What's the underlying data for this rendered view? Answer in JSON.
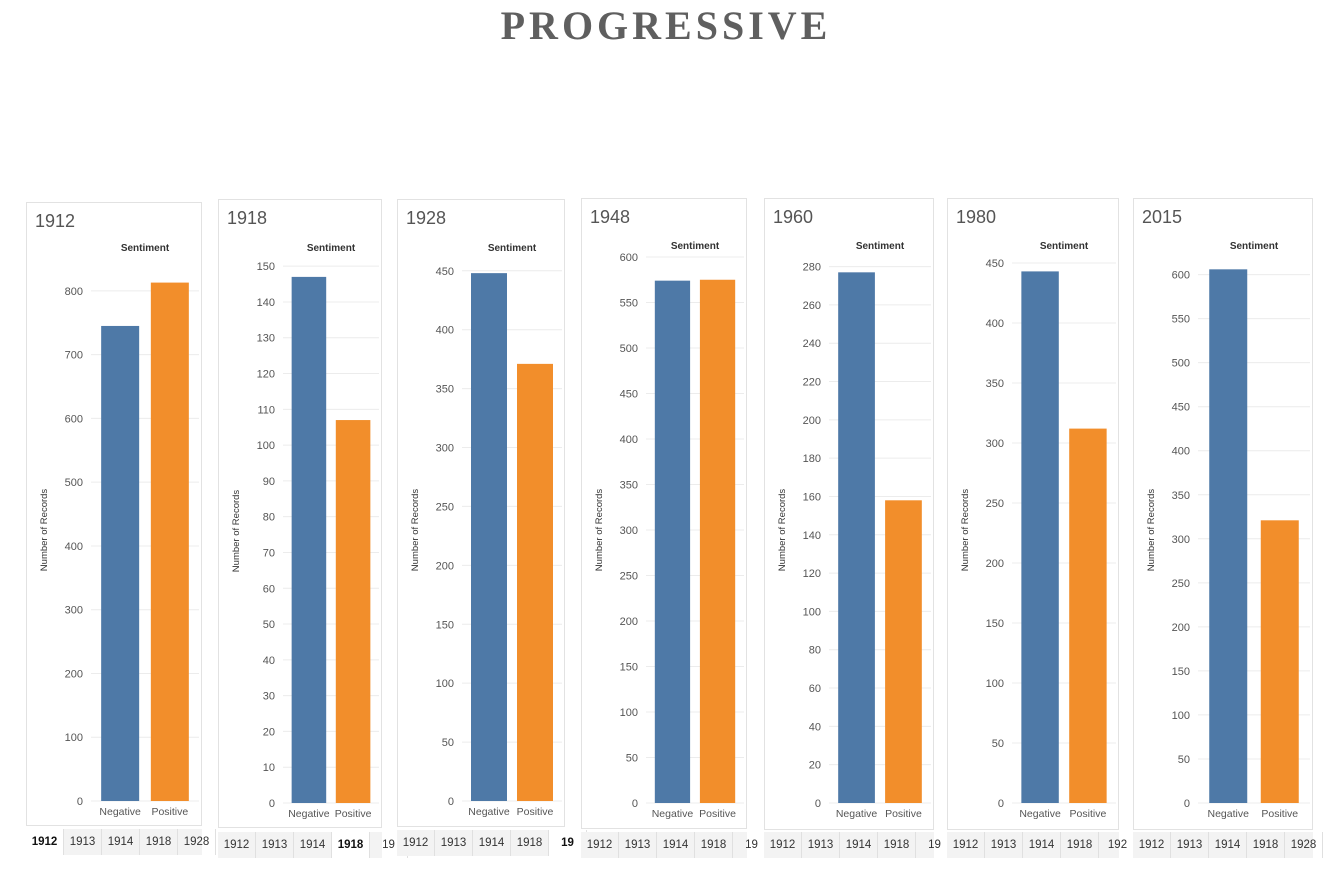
{
  "page_title": "PROGRESSIVE",
  "colors": {
    "negative": "#4e79a7",
    "positive": "#f28e2b",
    "grid": "#ececec",
    "text": "#555555"
  },
  "chart_data": [
    {
      "type": "bar",
      "title": "1912",
      "header": "Sentiment",
      "ylabel": "Number of Records",
      "categories": [
        "Negative",
        "Positive"
      ],
      "values": [
        745,
        813
      ],
      "ylim": [
        0,
        850
      ],
      "yticks": [
        0,
        100,
        200,
        300,
        400,
        500,
        600,
        700,
        800
      ],
      "grid": true,
      "tabs": [
        "1912",
        "1913",
        "1914",
        "1918",
        "1928"
      ],
      "active_tab": "1912"
    },
    {
      "type": "bar",
      "title": "1918",
      "header": "Sentiment",
      "ylabel": "Number of Records",
      "categories": [
        "Negative",
        "Positive"
      ],
      "values": [
        147,
        107
      ],
      "ylim": [
        0,
        152
      ],
      "yticks": [
        0,
        10,
        20,
        30,
        40,
        50,
        60,
        70,
        80,
        90,
        100,
        110,
        120,
        130,
        140,
        150
      ],
      "grid": true,
      "tabs": [
        "1912",
        "1913",
        "1914",
        "1918",
        "19"
      ],
      "active_tab": "1918"
    },
    {
      "type": "bar",
      "title": "1928",
      "header": "Sentiment",
      "ylabel": "Number of Records",
      "categories": [
        "Negative",
        "Positive"
      ],
      "values": [
        448,
        371
      ],
      "ylim": [
        0,
        460
      ],
      "yticks": [
        0,
        50,
        100,
        150,
        200,
        250,
        300,
        350,
        400,
        450
      ],
      "grid": true,
      "tabs": [
        "1912",
        "1913",
        "1914",
        "1918",
        "19"
      ],
      "active_tab": "19"
    },
    {
      "type": "bar",
      "title": "1948",
      "header": "Sentiment",
      "ylabel": "Number of Records",
      "categories": [
        "Negative",
        "Positive"
      ],
      "values": [
        574,
        575
      ],
      "ylim": [
        0,
        600
      ],
      "yticks": [
        0,
        50,
        100,
        150,
        200,
        250,
        300,
        350,
        400,
        450,
        500,
        550,
        600
      ],
      "grid": true,
      "tabs": [
        "1912",
        "1913",
        "1914",
        "1918",
        "19"
      ],
      "active_tab": ""
    },
    {
      "type": "bar",
      "title": "1960",
      "header": "Sentiment",
      "ylabel": "Number of Records",
      "categories": [
        "Negative",
        "Positive"
      ],
      "values": [
        277,
        158
      ],
      "ylim": [
        0,
        285
      ],
      "yticks": [
        0,
        20,
        40,
        60,
        80,
        100,
        120,
        140,
        160,
        180,
        200,
        220,
        240,
        260,
        280
      ],
      "grid": true,
      "tabs": [
        "1912",
        "1913",
        "1914",
        "1918",
        "19"
      ],
      "active_tab": ""
    },
    {
      "type": "bar",
      "title": "1980",
      "header": "Sentiment",
      "ylabel": "Number of Records",
      "categories": [
        "Negative",
        "Positive"
      ],
      "values": [
        443,
        312
      ],
      "ylim": [
        0,
        455
      ],
      "yticks": [
        0,
        50,
        100,
        150,
        200,
        250,
        300,
        350,
        400,
        450
      ],
      "grid": true,
      "tabs": [
        "1912",
        "1913",
        "1914",
        "1918",
        "192"
      ],
      "active_tab": ""
    },
    {
      "type": "bar",
      "title": "2015",
      "header": "Sentiment",
      "ylabel": "Number of Records",
      "categories": [
        "Negative",
        "Positive"
      ],
      "values": [
        606,
        321
      ],
      "ylim": [
        0,
        620
      ],
      "yticks": [
        0,
        50,
        100,
        150,
        200,
        250,
        300,
        350,
        400,
        450,
        500,
        550,
        600
      ],
      "grid": true,
      "tabs": [
        "1912",
        "1913",
        "1914",
        "1918",
        "1928"
      ],
      "active_tab": ""
    }
  ]
}
